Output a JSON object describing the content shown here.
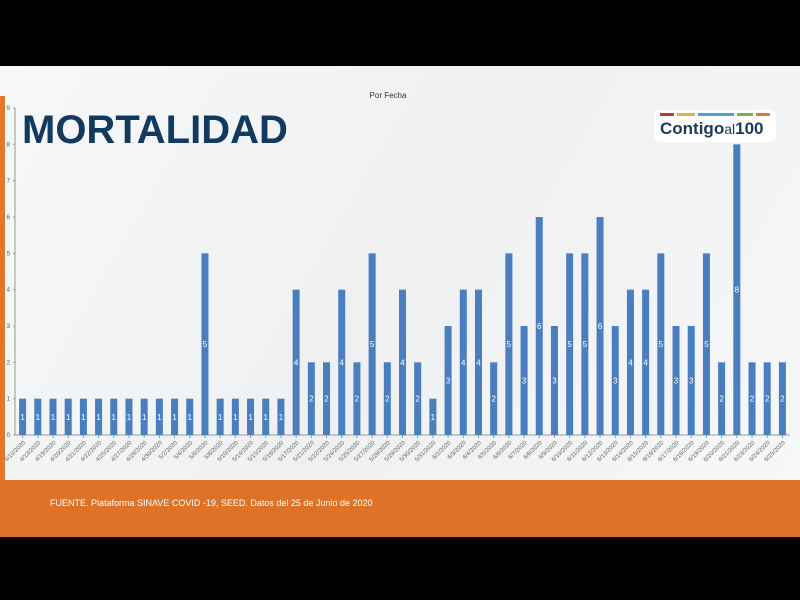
{
  "slide": {
    "title": "MORTALIDAD",
    "logo_text": "Contigo",
    "logo_text2": "al",
    "logo_text3": "100",
    "source": "FUENTE. Plataforma SINAVE COVID -19, SEED. Datos del 25 de Junio de 2020"
  },
  "colors": {
    "bar": "#4a7ebf",
    "title": "#12395e",
    "footer": "#de7328"
  },
  "chart_data": {
    "type": "bar",
    "title": "Por Fecha",
    "xlabel": "",
    "ylabel": "",
    "ylim": [
      0,
      9
    ],
    "grid": false,
    "legend": "none",
    "categories": [
      "4/10/2020",
      "4/13/2020",
      "4/19/2020",
      "4/20/2020",
      "4/21/2020",
      "4/22/2020",
      "4/25/2020",
      "4/27/2020",
      "4/28/2020",
      "4/30/2020",
      "5/2/2020",
      "5/4/2020",
      "5/6/2020",
      "5/8/2020",
      "5/10/2020",
      "5/14/2020",
      "5/15/2020",
      "5/16/2020",
      "5/17/2020",
      "5/21/2020",
      "5/22/2020",
      "5/24/2020",
      "5/25/2020",
      "5/27/2020",
      "5/28/2020",
      "5/29/2020",
      "5/30/2020",
      "5/31/2020",
      "6/1/2020",
      "6/3/2020",
      "6/4/2020",
      "6/5/2020",
      "6/6/2020",
      "6/7/2020",
      "6/8/2020",
      "6/9/2020",
      "6/10/2020",
      "6/11/2020",
      "6/12/2020",
      "6/13/2020",
      "6/14/2020",
      "6/15/2020",
      "6/16/2020",
      "6/17/2020",
      "6/18/2020",
      "6/19/2020",
      "6/20/2020",
      "6/21/2020",
      "6/23/2020",
      "6/24/2020",
      "6/25/2020"
    ],
    "values": [
      1,
      1,
      1,
      1,
      1,
      1,
      1,
      1,
      1,
      1,
      1,
      1,
      5,
      1,
      1,
      1,
      1,
      1,
      4,
      2,
      2,
      4,
      2,
      5,
      2,
      4,
      2,
      1,
      3,
      4,
      4,
      2,
      5,
      3,
      6,
      3,
      5,
      5,
      6,
      3,
      4,
      4,
      5,
      3,
      3,
      5,
      2,
      8,
      2,
      2,
      2
    ],
    "yticks": [
      0,
      1,
      2,
      3,
      4,
      5,
      6,
      7,
      8,
      9
    ]
  }
}
